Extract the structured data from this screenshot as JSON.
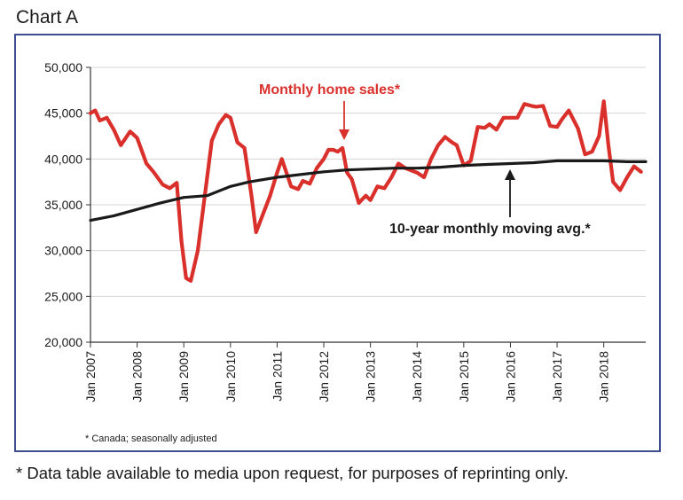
{
  "header": {
    "label": "Chart A"
  },
  "footer": {
    "note": "* Data table available to media upon request, for purposes of reprinting only."
  },
  "colors": {
    "sales": "#d9302c",
    "avg": "#1a1a1a",
    "frame": "#3d4d8f",
    "grid": "#d4d4d4"
  },
  "chart_data": {
    "type": "line",
    "title": "",
    "xlabel": "",
    "ylabel": "",
    "ylim": [
      20000,
      50000
    ],
    "xlim": [
      2007.0,
      2018.9
    ],
    "yticks": [
      20000,
      25000,
      30000,
      35000,
      40000,
      45000,
      50000
    ],
    "ytick_labels": [
      "20,000",
      "25,000",
      "30,000",
      "35,000",
      "40,000",
      "45,000",
      "50,000"
    ],
    "xticks": [
      2007,
      2008,
      2009,
      2010,
      2011,
      2012,
      2013,
      2014,
      2015,
      2016,
      2017,
      2018
    ],
    "xtick_labels": [
      "Jan 2007",
      "Jan 2008",
      "Jan 2009",
      "Jan 2010",
      "Jan 2011",
      "Jan 2012",
      "Jan 2013",
      "Jan 2014",
      "Jan 2015",
      "Jan 2016",
      "Jan 2017",
      "Jan 2018"
    ],
    "grid": true,
    "note": "* Canada; seasonally adjusted",
    "series": [
      {
        "name": "Monthly home sales*",
        "x": [
          2007.0,
          2007.1,
          2007.2,
          2007.35,
          2007.5,
          2007.65,
          2007.85,
          2008.0,
          2008.2,
          2008.35,
          2008.55,
          2008.7,
          2008.85,
          2008.95,
          2009.05,
          2009.15,
          2009.3,
          2009.45,
          2009.6,
          2009.75,
          2009.9,
          2010.0,
          2010.15,
          2010.3,
          2010.45,
          2010.55,
          2010.7,
          2010.85,
          2011.0,
          2011.1,
          2011.3,
          2011.45,
          2011.55,
          2011.7,
          2011.85,
          2012.0,
          2012.1,
          2012.2,
          2012.3,
          2012.4,
          2012.5,
          2012.6,
          2012.75,
          2012.9,
          2013.0,
          2013.15,
          2013.3,
          2013.45,
          2013.6,
          2013.75,
          2013.9,
          2014.0,
          2014.15,
          2014.3,
          2014.45,
          2014.6,
          2014.75,
          2014.85,
          2015.0,
          2015.15,
          2015.3,
          2015.45,
          2015.55,
          2015.7,
          2015.85,
          2016.0,
          2016.15,
          2016.3,
          2016.45,
          2016.55,
          2016.7,
          2016.85,
          2017.0,
          2017.1,
          2017.25,
          2017.45,
          2017.6,
          2017.75,
          2017.9,
          2018.0,
          2018.1,
          2018.2,
          2018.35,
          2018.5,
          2018.65,
          2018.8
        ],
        "values": [
          45000,
          45300,
          44200,
          44500,
          43200,
          41500,
          43000,
          42300,
          39500,
          38600,
          37200,
          36800,
          37400,
          31000,
          27000,
          26700,
          30000,
          36000,
          42000,
          43800,
          44800,
          44500,
          41800,
          41200,
          36000,
          32000,
          34000,
          36000,
          38500,
          40000,
          37000,
          36700,
          37600,
          37300,
          39000,
          40000,
          41000,
          41000,
          40800,
          41200,
          38500,
          37800,
          35200,
          36000,
          35500,
          37000,
          36800,
          38000,
          39500,
          39000,
          38700,
          38500,
          38000,
          40000,
          41500,
          42400,
          41800,
          41500,
          39300,
          39800,
          43500,
          43400,
          43800,
          43200,
          44500,
          44500,
          44500,
          46000,
          45800,
          45700,
          45800,
          43600,
          43500,
          44300,
          45300,
          43300,
          40500,
          40800,
          42500,
          46300,
          41500,
          37500,
          36600,
          38000,
          39200,
          38600
        ]
      },
      {
        "name": "10-year monthly moving avg.*",
        "x": [
          2007.0,
          2007.5,
          2008.0,
          2008.5,
          2009.0,
          2009.5,
          2010.0,
          2010.4,
          2011.0,
          2011.5,
          2012.0,
          2012.5,
          2013.0,
          2013.5,
          2014.0,
          2014.5,
          2015.0,
          2015.5,
          2016.0,
          2016.5,
          2017.0,
          2017.5,
          2018.0,
          2018.5,
          2018.9
        ],
        "values": [
          33300,
          33800,
          34500,
          35200,
          35800,
          36000,
          37000,
          37500,
          38000,
          38300,
          38600,
          38800,
          38900,
          39000,
          39000,
          39100,
          39300,
          39400,
          39500,
          39600,
          39800,
          39800,
          39800,
          39700,
          39700
        ]
      }
    ],
    "annotations": [
      {
        "text": "Monthly home sales*",
        "series": "Monthly home sales*"
      },
      {
        "text": "10-year monthly moving avg.*",
        "series": "10-year monthly moving avg.*"
      }
    ]
  }
}
